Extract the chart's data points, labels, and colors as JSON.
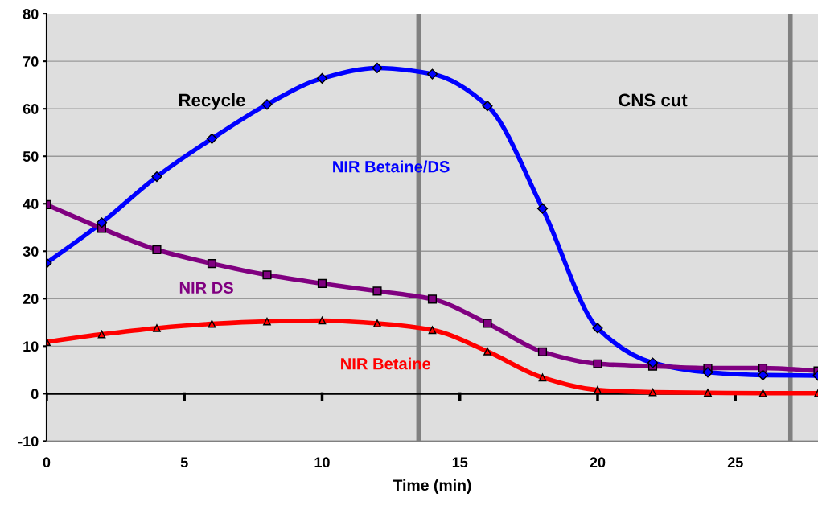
{
  "chart_data": {
    "type": "line",
    "xlabel": "Time (min)",
    "x": [
      0,
      2,
      4,
      6,
      8,
      10,
      12,
      14,
      16,
      18,
      20,
      22,
      24,
      26,
      28
    ],
    "series": [
      {
        "name": "NIR Betaine/DS",
        "color": "#0000ff",
        "marker": "diamond",
        "values": [
          27.5,
          36,
          45.7,
          53.7,
          60.9,
          66.4,
          68.6,
          67.3,
          60.6,
          39,
          13.8,
          6.5,
          4.5,
          3.9,
          3.8
        ]
      },
      {
        "name": "NIR DS",
        "color": "#800080",
        "marker": "square",
        "values": [
          39.8,
          34.8,
          30.3,
          27.4,
          25.0,
          23.2,
          21.6,
          19.9,
          14.8,
          8.8,
          6.3,
          5.8,
          5.4,
          5.4,
          4.8
        ]
      },
      {
        "name": "NIR Betaine",
        "color": "#ff0000",
        "marker": "triangle",
        "values": [
          10.9,
          12.5,
          13.8,
          14.7,
          15.2,
          15.4,
          14.8,
          13.4,
          8.9,
          3.4,
          0.8,
          0.3,
          0.2,
          0.1,
          0.1
        ]
      }
    ],
    "xlim": [
      0,
      28
    ],
    "xticks": [
      0,
      5,
      10,
      15,
      20,
      25
    ],
    "ylim": [
      -10,
      80
    ],
    "yticks": [
      -10,
      0,
      10,
      20,
      30,
      40,
      50,
      60,
      70,
      80
    ],
    "grid": "y",
    "legend": false,
    "line_style": "solid",
    "ref_lines": [
      {
        "axis": "x",
        "value": 13.5,
        "label": null,
        "color": "#808080"
      },
      {
        "axis": "x",
        "value": 27,
        "label": null,
        "color": "#808080"
      },
      {
        "axis": "y",
        "value": 0,
        "label": null,
        "color": "#000000"
      }
    ],
    "annotations": [
      "Recycle",
      "CNS cut"
    ]
  }
}
